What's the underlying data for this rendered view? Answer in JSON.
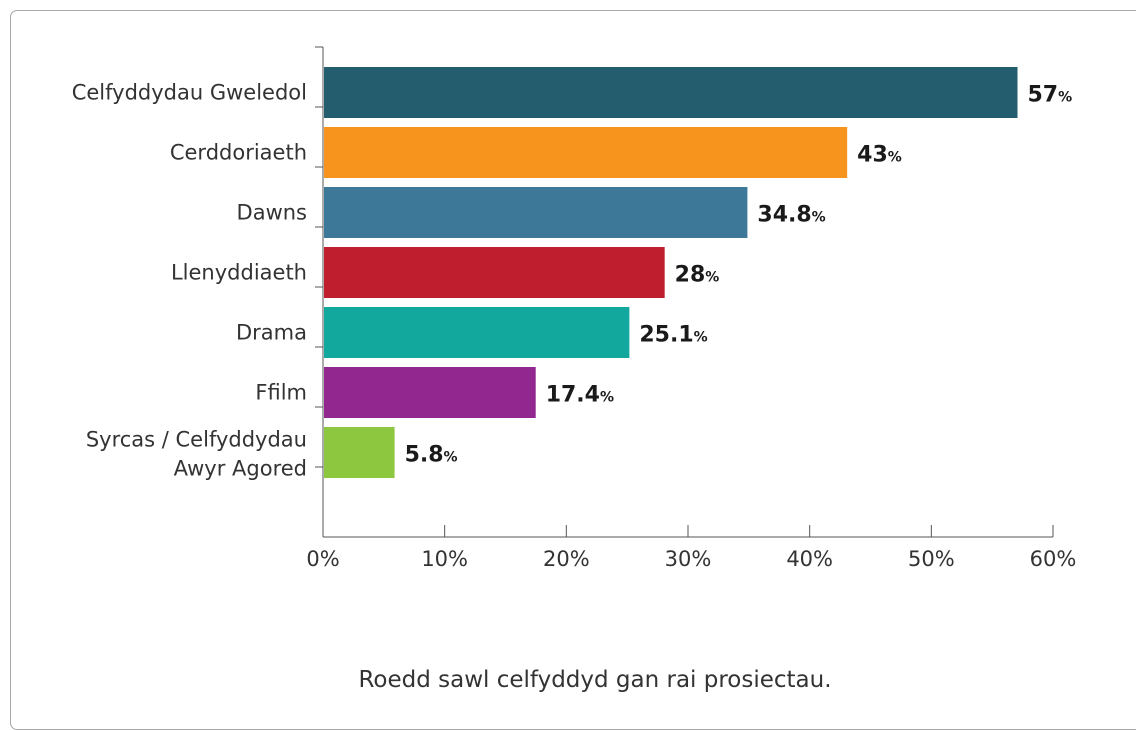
{
  "caption": "Roedd sawl celfyddyd gan rai prosiectau.",
  "chart_data": {
    "type": "bar",
    "orientation": "horizontal",
    "categories": [
      "Celfyddydau Gweledol",
      "Cerddoriaeth",
      "Dawns",
      "Llenyddiaeth",
      "Drama",
      "Ffilm",
      [
        "Syrcas / Celfyddydau",
        "Awyr Agored"
      ]
    ],
    "values": [
      57,
      43,
      34.8,
      28,
      25.1,
      17.4,
      5.8
    ],
    "colors": [
      "#235d6e",
      "#f7941e",
      "#3e7898",
      "#be1e2d",
      "#13a89e",
      "#92278f",
      "#8dc63f"
    ],
    "value_suffix": "%",
    "xlim": [
      0,
      60
    ],
    "xticks": [
      0,
      10,
      20,
      30,
      40,
      50,
      60
    ],
    "xtick_labels": [
      "0%",
      "10%",
      "20%",
      "30%",
      "40%",
      "50%",
      "60%"
    ],
    "grid": false
  }
}
